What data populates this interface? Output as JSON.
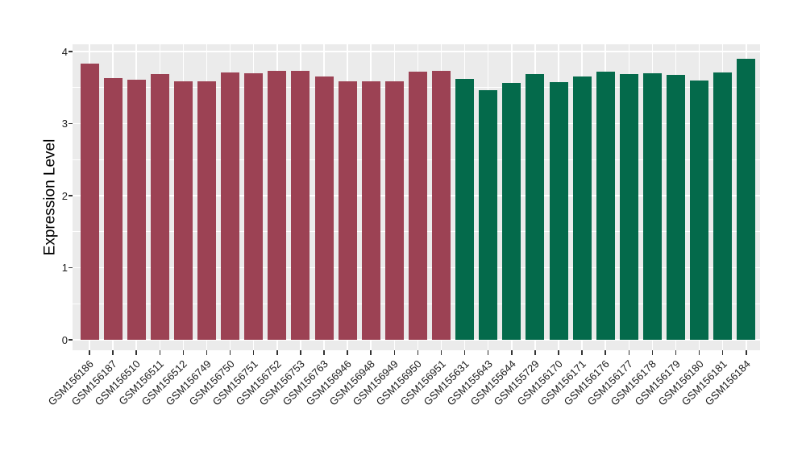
{
  "chart_data": {
    "type": "bar",
    "title": "",
    "xlabel": "",
    "ylabel": "Expression Level",
    "ylim": [
      0,
      4.1
    ],
    "yticks": [
      0,
      1,
      2,
      3,
      4
    ],
    "grid": "on",
    "legend": "none",
    "categories": [
      "GSM156186",
      "GSM156187",
      "GSM156510",
      "GSM156511",
      "GSM156512",
      "GSM156749",
      "GSM156750",
      "GSM156751",
      "GSM156752",
      "GSM156753",
      "GSM156763",
      "GSM156946",
      "GSM156948",
      "GSM156949",
      "GSM156950",
      "GSM156951",
      "GSM155631",
      "GSM155643",
      "GSM155644",
      "GSM155729",
      "GSM156170",
      "GSM156171",
      "GSM156176",
      "GSM156177",
      "GSM156178",
      "GSM156179",
      "GSM156180",
      "GSM156181",
      "GSM156184"
    ],
    "values": [
      3.83,
      3.63,
      3.61,
      3.69,
      3.59,
      3.59,
      3.71,
      3.7,
      3.73,
      3.73,
      3.65,
      3.59,
      3.59,
      3.59,
      3.72,
      3.73,
      3.62,
      3.46,
      3.57,
      3.69,
      3.58,
      3.65,
      3.72,
      3.69,
      3.7,
      3.68,
      3.6,
      3.71,
      3.9
    ],
    "bar_groups": [
      "group1",
      "group1",
      "group1",
      "group1",
      "group1",
      "group1",
      "group1",
      "group1",
      "group1",
      "group1",
      "group1",
      "group1",
      "group1",
      "group1",
      "group1",
      "group1",
      "group2",
      "group2",
      "group2",
      "group2",
      "group2",
      "group2",
      "group2",
      "group2",
      "group2",
      "group2",
      "group2",
      "group2",
      "group2"
    ],
    "palette": {
      "group1": "#9C4254",
      "group2": "#046A4B"
    }
  },
  "style": {
    "figure_bg": "#FFFFFF",
    "panel_bg": "#EBEBEB",
    "grid_color": "#FFFFFF",
    "axis_text_color": "#1A1A1A",
    "axis_title_color": "#000000",
    "tick_color": "#333333"
  }
}
